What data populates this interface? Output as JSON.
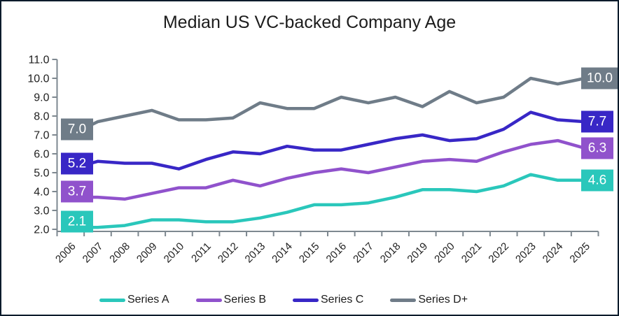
{
  "window": {
    "background": "#ffffff",
    "border_color": "#0a1b2b"
  },
  "chart_data": {
    "type": "line",
    "title": "Median US VC-backed Company Age",
    "x": [
      "2006",
      "2007",
      "2008",
      "2009",
      "2010",
      "2011",
      "2012",
      "2013",
      "2014",
      "2015",
      "2016",
      "2017",
      "2018",
      "2019",
      "2020",
      "2021",
      "2022",
      "2023",
      "2024",
      "2025"
    ],
    "series": [
      {
        "name": "Series A",
        "color": "#2ac7bb",
        "values": [
          2.1,
          2.1,
          2.2,
          2.5,
          2.5,
          2.4,
          2.4,
          2.6,
          2.9,
          3.3,
          3.3,
          3.4,
          3.7,
          4.1,
          4.1,
          4.0,
          4.3,
          4.9,
          4.6,
          4.6
        ],
        "start_label": "2.1",
        "end_label": "4.6"
      },
      {
        "name": "Series B",
        "color": "#9052cc",
        "values": [
          3.7,
          3.7,
          3.6,
          3.9,
          4.2,
          4.2,
          4.6,
          4.3,
          4.7,
          5.0,
          5.2,
          5.0,
          5.3,
          5.6,
          5.7,
          5.6,
          6.1,
          6.5,
          6.7,
          6.3
        ],
        "start_label": "3.7",
        "end_label": "6.3"
      },
      {
        "name": "Series C",
        "color": "#3827c6",
        "values": [
          5.2,
          5.6,
          5.5,
          5.5,
          5.2,
          5.7,
          6.1,
          6.0,
          6.4,
          6.2,
          6.2,
          6.5,
          6.8,
          7.0,
          6.7,
          6.8,
          7.3,
          8.2,
          7.8,
          7.7
        ],
        "start_label": "5.2",
        "end_label": "7.7"
      },
      {
        "name": "Series D+",
        "color": "#6f7c88",
        "values": [
          7.0,
          7.7,
          8.0,
          8.3,
          7.8,
          7.8,
          7.9,
          8.7,
          8.4,
          8.4,
          9.0,
          8.7,
          9.0,
          8.5,
          9.3,
          8.7,
          9.0,
          10.0,
          9.7,
          10.0
        ],
        "start_label": "7.0",
        "end_label": "10.0"
      }
    ],
    "ylim": [
      2.0,
      11.0
    ],
    "ytick_labels": [
      "2.0",
      "3.0",
      "4.0",
      "5.0",
      "6.0",
      "7.0",
      "8.0",
      "9.0",
      "10.0",
      "11.0"
    ],
    "grid": false,
    "legend_position": "bottom",
    "axis_color": "#7e8890",
    "tick_label_color": "#1f1f1f"
  }
}
